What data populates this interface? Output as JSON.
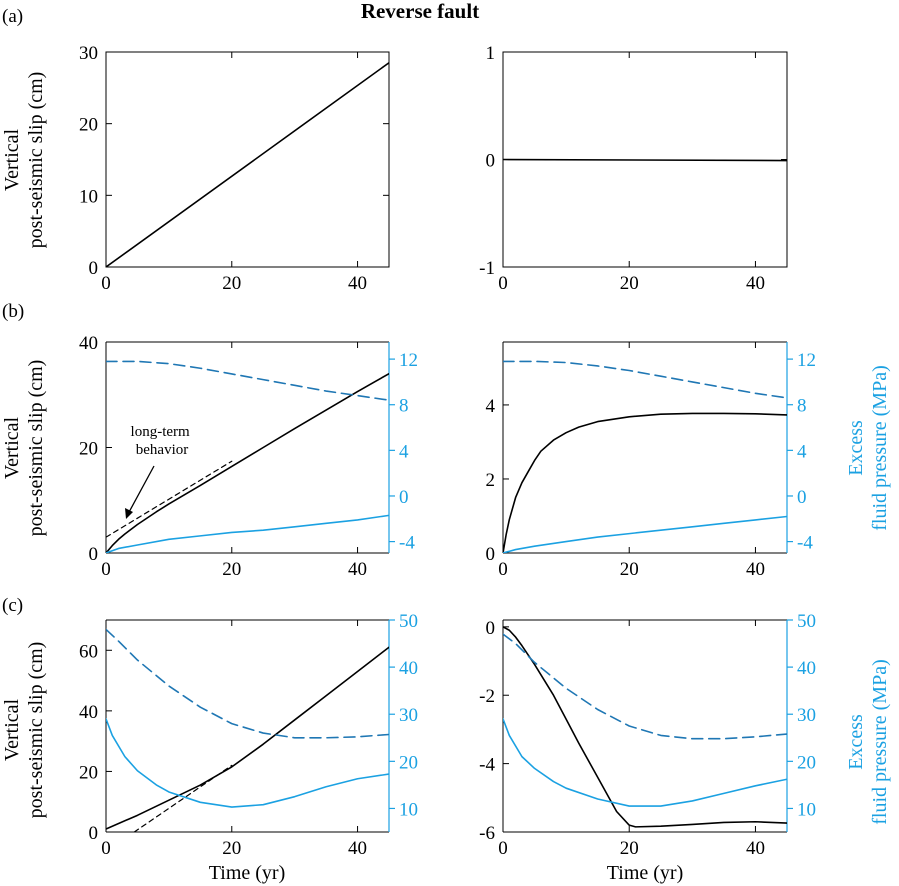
{
  "figure": {
    "title": "Reverse fault",
    "panel_labels": [
      "(a)",
      "(b)",
      "(c)"
    ],
    "ylabel_left_line1": "Vertical",
    "ylabel_left_line2": "post-seismic slip (cm)",
    "ylabel_right_line1": "Excess",
    "ylabel_right_line2": "fluid pressure (MPa)",
    "xlabel": "Time (yr)",
    "annotation": "long-term\nbehavior"
  },
  "colors": {
    "slip": "#000000",
    "pressure": "#1ba1e2",
    "pressure_dashed": "#1f77b4"
  },
  "chart_data": [
    {
      "id": "a-left",
      "type": "line",
      "panel": "(a)",
      "xlim": [
        0,
        45
      ],
      "xticks": [
        0,
        20,
        40
      ],
      "ylim": [
        0,
        30
      ],
      "yticks": [
        0,
        10,
        20,
        30
      ],
      "series": [
        {
          "name": "Vertical post-seismic slip",
          "axis": "left",
          "style": "solid",
          "color": "#000000",
          "x": [
            0,
            45
          ],
          "y": [
            0,
            28.5
          ]
        }
      ]
    },
    {
      "id": "a-right",
      "type": "line",
      "panel": "(a)",
      "xlim": [
        0,
        45
      ],
      "xticks": [
        0,
        20,
        40
      ],
      "ylim": [
        -1,
        1
      ],
      "yticks": [
        -1,
        0,
        1
      ],
      "series": [
        {
          "name": "Vertical post-seismic slip",
          "axis": "left",
          "style": "solid",
          "color": "#000000",
          "x": [
            0,
            45
          ],
          "y": [
            0,
            -0.01
          ]
        }
      ]
    },
    {
      "id": "b-left",
      "type": "line",
      "panel": "(b)",
      "xlim": [
        0,
        45
      ],
      "xticks": [
        0,
        20,
        40
      ],
      "ylim": [
        0,
        40
      ],
      "yticks": [
        0,
        20,
        40
      ],
      "y2lim": [
        -5,
        13.5
      ],
      "y2ticks": [
        -4,
        0,
        4,
        8,
        12
      ],
      "series": [
        {
          "name": "Vertical post-seismic slip",
          "axis": "left",
          "style": "solid",
          "color": "#000000",
          "x": [
            0,
            1,
            2,
            3,
            5,
            8,
            10,
            15,
            20,
            25,
            30,
            35,
            40,
            45
          ],
          "y": [
            0,
            1.4,
            2.6,
            3.6,
            5.4,
            7.8,
            9.3,
            12.8,
            16.4,
            20.0,
            23.6,
            27.1,
            30.6,
            34.0
          ]
        },
        {
          "name": "long-term behavior",
          "axis": "left",
          "style": "dashed",
          "color": "#000000",
          "x": [
            0,
            20
          ],
          "y": [
            3.0,
            17.4
          ]
        },
        {
          "name": "Excess fluid pressure (dashed)",
          "axis": "right",
          "style": "dashed",
          "color": "#1f77b4",
          "x": [
            0,
            5,
            10,
            15,
            20,
            25,
            30,
            35,
            40,
            45
          ],
          "y": [
            11.8,
            11.8,
            11.6,
            11.2,
            10.7,
            10.2,
            9.7,
            9.2,
            8.8,
            8.4
          ]
        },
        {
          "name": "Excess fluid pressure (solid)",
          "axis": "right",
          "style": "solid",
          "color": "#1ba1e2",
          "x": [
            0,
            2,
            5,
            10,
            15,
            20,
            25,
            30,
            35,
            40,
            45
          ],
          "y": [
            -5,
            -4.6,
            -4.3,
            -3.8,
            -3.5,
            -3.2,
            -3.0,
            -2.7,
            -2.4,
            -2.1,
            -1.7
          ]
        }
      ]
    },
    {
      "id": "b-right",
      "type": "line",
      "panel": "(b)",
      "xlim": [
        0,
        45
      ],
      "xticks": [
        0,
        20,
        40
      ],
      "ylim": [
        0,
        5.7
      ],
      "yticks": [
        0,
        2,
        4
      ],
      "y2lim": [
        -5,
        13.5
      ],
      "y2ticks": [
        -4,
        0,
        4,
        8,
        12
      ],
      "series": [
        {
          "name": "Vertical post-seismic slip",
          "axis": "left",
          "style": "solid",
          "color": "#000000",
          "x": [
            0,
            0.5,
            1,
            2,
            3,
            4,
            5,
            6,
            8,
            10,
            12,
            15,
            20,
            25,
            30,
            35,
            40,
            45
          ],
          "y": [
            0,
            0.5,
            0.9,
            1.5,
            1.9,
            2.2,
            2.5,
            2.75,
            3.05,
            3.25,
            3.4,
            3.55,
            3.68,
            3.75,
            3.77,
            3.77,
            3.76,
            3.73
          ]
        },
        {
          "name": "Excess fluid pressure (dashed)",
          "axis": "right",
          "style": "dashed",
          "color": "#1f77b4",
          "x": [
            0,
            5,
            10,
            15,
            20,
            25,
            30,
            35,
            40,
            45
          ],
          "y": [
            11.8,
            11.8,
            11.7,
            11.4,
            11.0,
            10.5,
            10.0,
            9.5,
            9.0,
            8.6
          ]
        },
        {
          "name": "Excess fluid pressure (solid)",
          "axis": "right",
          "style": "solid",
          "color": "#1ba1e2",
          "x": [
            0,
            2,
            5,
            10,
            15,
            20,
            25,
            30,
            35,
            40,
            45
          ],
          "y": [
            -5,
            -4.7,
            -4.4,
            -4.0,
            -3.6,
            -3.3,
            -3.0,
            -2.7,
            -2.4,
            -2.1,
            -1.8
          ]
        }
      ]
    },
    {
      "id": "c-left",
      "type": "line",
      "panel": "(c)",
      "xlim": [
        0,
        45
      ],
      "xticks": [
        0,
        20,
        40
      ],
      "ylim": [
        0,
        70
      ],
      "yticks": [
        0,
        20,
        40,
        60
      ],
      "y2lim": [
        5,
        50
      ],
      "y2ticks": [
        10,
        20,
        30,
        40,
        50
      ],
      "series": [
        {
          "name": "Vertical post-seismic slip",
          "axis": "left",
          "style": "solid",
          "color": "#000000",
          "x": [
            0,
            5,
            10,
            15,
            20,
            25,
            30,
            35,
            40,
            45
          ],
          "y": [
            1,
            5.5,
            10.5,
            15.5,
            21.5,
            29,
            37,
            45,
            53,
            61
          ]
        },
        {
          "name": "long-term behavior",
          "axis": "left",
          "style": "dashed",
          "color": "#000000",
          "x": [
            4.5,
            20
          ],
          "y": [
            0,
            22
          ]
        },
        {
          "name": "Excess fluid pressure (dashed)",
          "axis": "right",
          "style": "dashed",
          "color": "#1f77b4",
          "x": [
            0,
            2,
            5,
            10,
            15,
            20,
            25,
            30,
            35,
            40,
            45
          ],
          "y": [
            48,
            45.5,
            41.5,
            36,
            31.5,
            28,
            26,
            25,
            25,
            25.2,
            25.7
          ]
        },
        {
          "name": "Excess fluid pressure (solid)",
          "axis": "right",
          "style": "solid",
          "color": "#1ba1e2",
          "x": [
            0,
            1,
            3,
            5,
            8,
            10,
            15,
            20,
            25,
            30,
            35,
            40,
            45
          ],
          "y": [
            29,
            25.5,
            21,
            18,
            15,
            13.5,
            11.3,
            10.3,
            10.8,
            12.5,
            14.6,
            16.3,
            17.3
          ]
        }
      ]
    },
    {
      "id": "c-right",
      "type": "line",
      "panel": "(c)",
      "xlim": [
        0,
        45
      ],
      "xticks": [
        0,
        20,
        40
      ],
      "ylim": [
        -6,
        0.2
      ],
      "yticks": [
        -6,
        -4,
        -2,
        0
      ],
      "y2lim": [
        5,
        50
      ],
      "y2ticks": [
        10,
        20,
        30,
        40,
        50
      ],
      "series": [
        {
          "name": "Vertical post-seismic slip",
          "axis": "left",
          "style": "solid",
          "color": "#000000",
          "x": [
            0,
            1,
            2,
            3,
            5,
            8,
            10,
            12,
            15,
            18,
            20,
            21,
            25,
            30,
            35,
            40,
            45
          ],
          "y": [
            0,
            -0.1,
            -0.3,
            -0.55,
            -1.1,
            -2.0,
            -2.7,
            -3.4,
            -4.4,
            -5.4,
            -5.8,
            -5.85,
            -5.83,
            -5.78,
            -5.72,
            -5.7,
            -5.74
          ]
        },
        {
          "name": "Excess fluid pressure (dashed)",
          "axis": "right",
          "style": "dashed",
          "color": "#1f77b4",
          "x": [
            0,
            2,
            5,
            10,
            15,
            20,
            25,
            30,
            35,
            40,
            45
          ],
          "y": [
            47,
            45,
            41,
            35.5,
            31,
            27.5,
            25.5,
            24.8,
            24.8,
            25.2,
            25.8
          ]
        },
        {
          "name": "Excess fluid pressure (solid)",
          "axis": "right",
          "style": "solid",
          "color": "#1ba1e2",
          "x": [
            0,
            1,
            3,
            5,
            8,
            10,
            15,
            20,
            25,
            30,
            35,
            40,
            45
          ],
          "y": [
            29,
            25.5,
            21,
            18.5,
            15.7,
            14.3,
            12,
            10.5,
            10.5,
            11.6,
            13.2,
            14.8,
            16.2
          ]
        }
      ]
    }
  ]
}
